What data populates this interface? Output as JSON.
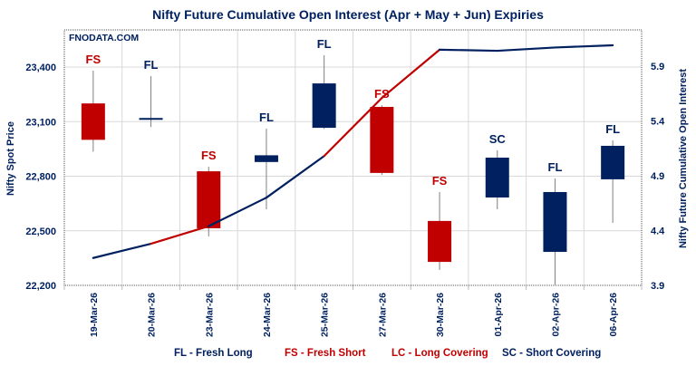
{
  "chart_data": {
    "type": "candlestick+line",
    "title": "Nifty Future Cumulative Open Interest (Apr + May + Jun) Expiries",
    "watermark": "FNODATA.COM",
    "ylabel": "Nifty Spot Price",
    "y2label": "Nifty Future Cumulative Open Interest",
    "ylim": [
      22200,
      23600
    ],
    "yticks": [
      "22,200",
      "22,500",
      "22,800",
      "23,100",
      "23,400"
    ],
    "ytick_values": [
      22200,
      22500,
      22800,
      23100,
      23400
    ],
    "y2lim": [
      3.9,
      6.233
    ],
    "y2ticks": [
      "3.9",
      "4.4",
      "4.9",
      "5.4",
      "5.9"
    ],
    "y2tick_values": [
      3.9,
      4.4,
      4.9,
      5.4,
      5.9
    ],
    "grid": true,
    "categories": [
      "19-Mar-26",
      "20-Mar-26",
      "23-Mar-26",
      "24-Mar-26",
      "25-Mar-26",
      "27-Mar-26",
      "30-Mar-26",
      "01-Apr-26",
      "02-Apr-26",
      "06-Apr-26"
    ],
    "candles": [
      {
        "open": 23200,
        "high": 23380,
        "low": 22935,
        "close": 23000,
        "label": "FS"
      },
      {
        "open": 23110,
        "high": 23350,
        "low": 23070,
        "close": 23120,
        "label": "FL"
      },
      {
        "open": 22827,
        "high": 22852,
        "low": 22469,
        "close": 22514,
        "label": "FS"
      },
      {
        "open": 22878,
        "high": 23062,
        "low": 22618,
        "close": 22915,
        "label": "FL"
      },
      {
        "open": 23066,
        "high": 23465,
        "low": 23060,
        "close": 23310,
        "label": "FL"
      },
      {
        "open": 23181,
        "high": 23190,
        "low": 22807,
        "close": 22818,
        "label": "FS"
      },
      {
        "open": 22554,
        "high": 22713,
        "low": 22285,
        "close": 22329,
        "label": "FS"
      },
      {
        "open": 22902,
        "high": 22942,
        "low": 22618,
        "close": 22683,
        "label": "SC"
      },
      {
        "open": 22384,
        "high": 22788,
        "low": 22200,
        "close": 22713,
        "label": "FL"
      },
      {
        "open": 22783,
        "high": 22997,
        "low": 22544,
        "close": 22967,
        "label": "FL"
      }
    ],
    "open_interest": [
      4.15,
      4.28,
      4.44,
      4.7,
      5.08,
      5.61,
      6.05,
      6.04,
      6.07,
      6.09
    ],
    "label_colors": {
      "FL": "#002060",
      "FS": "#C00000",
      "LC": "#C00000",
      "SC": "#002060"
    },
    "legend": [
      {
        "text": "FL - Fresh Long",
        "color": "#002060"
      },
      {
        "text": "FS - Fresh Short",
        "color": "#C00000"
      },
      {
        "text": "LC - Long Covering",
        "color": "#C00000"
      },
      {
        "text": "SC - Short Covering",
        "color": "#002060"
      }
    ],
    "legend_position": "bottom"
  }
}
